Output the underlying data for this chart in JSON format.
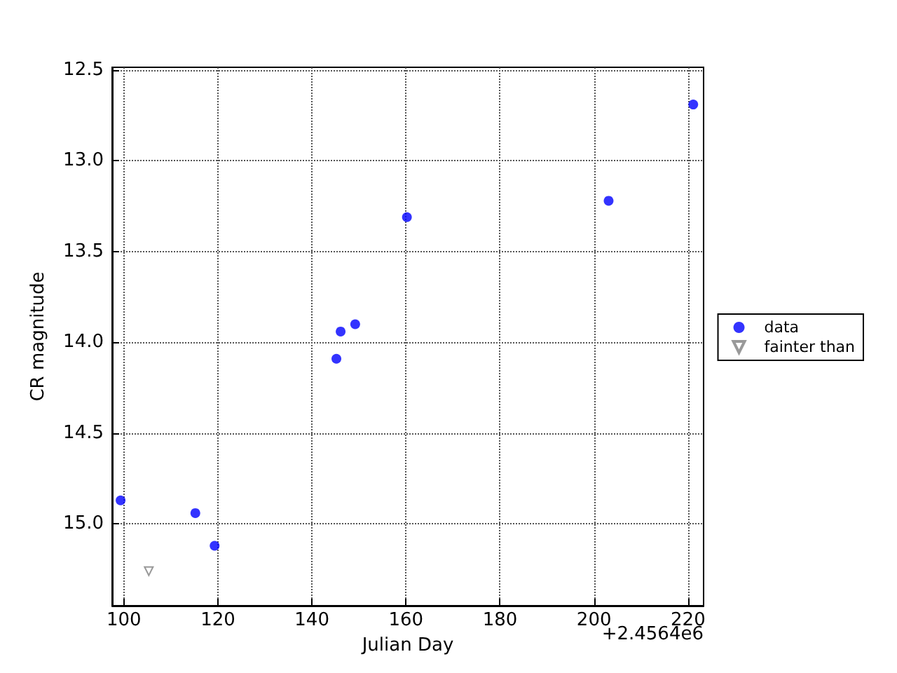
{
  "chart_data": {
    "type": "scatter",
    "xlabel": "Julian Day",
    "ylabel": "CR magnitude",
    "annotations": [
      "+2.4564e6"
    ],
    "series": [
      {
        "name": "data",
        "color": "#0000ff",
        "marker": "circle",
        "x": [
          99.3,
          115.2,
          119.3,
          145.2,
          146.1,
          149.2,
          160.2,
          203.1,
          221.1
        ],
        "values": [
          14.87,
          14.94,
          15.12,
          14.09,
          13.94,
          13.9,
          13.31,
          13.22,
          12.69
        ]
      },
      {
        "name": "fainter than",
        "color": "#808080",
        "marker": "triangle",
        "x": [
          105.3
        ],
        "values": [
          15.26
        ]
      }
    ],
    "xlim": [
      97.5,
      223.3
    ],
    "xticks": [
      100,
      120,
      140,
      160,
      180,
      200,
      220
    ],
    "ylim": [
      15.45,
      12.485
    ],
    "yticks": [
      12.5,
      {
        "value": 13,
        "label": "13.0"
      },
      13.5,
      {
        "value": 14,
        "label": "14.0"
      },
      14.5,
      {
        "value": 15,
        "label": "15.0"
      }
    ],
    "grid": true,
    "legend": "right"
  }
}
